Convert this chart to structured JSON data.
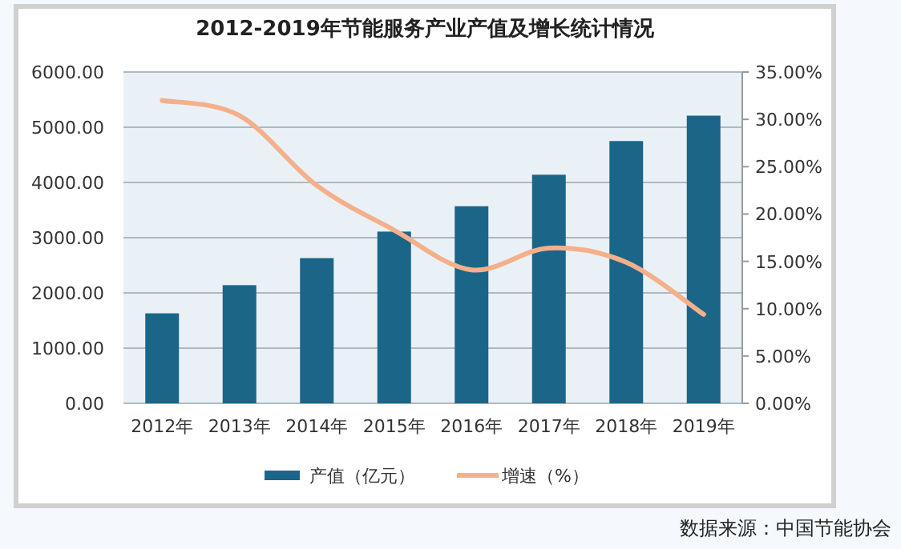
{
  "chart_data": {
    "type": "bar",
    "title": "2012-2019年节能服务产业产值及增长统计情况",
    "categories": [
      "2012年",
      "2013年",
      "2014年",
      "2015年",
      "2016年",
      "2017年",
      "2018年",
      "2019年"
    ],
    "series": [
      {
        "name": "产值（亿元）",
        "color": "#1b6589",
        "values": [
          1630,
          2140,
          2630,
          3110,
          3570,
          4140,
          4750,
          5210
        ]
      },
      {
        "name": "增速（%）",
        "type": "line",
        "axis": "y2",
        "color": "#f5b08a",
        "values": [
          32.0,
          30.4,
          23.0,
          18.3,
          14.1,
          16.4,
          14.9,
          9.4
        ]
      }
    ],
    "ylim": [
      0,
      6000
    ],
    "yticks": [
      {
        "value": 0,
        "label": "0.00"
      },
      {
        "value": 1000,
        "label": "1000.00"
      },
      {
        "value": 2000,
        "label": "2000.00"
      },
      {
        "value": 3000,
        "label": "3000.00"
      },
      {
        "value": 4000,
        "label": "4000.00"
      },
      {
        "value": 5000,
        "label": "5000.00"
      },
      {
        "value": 6000,
        "label": "6000.00"
      }
    ],
    "y2lim": [
      0,
      35
    ],
    "y2ticks": [
      {
        "value": 0,
        "label": "0.00%"
      },
      {
        "value": 5,
        "label": "5.00%"
      },
      {
        "value": 10,
        "label": "10.00%"
      },
      {
        "value": 15,
        "label": "15.00%"
      },
      {
        "value": 20,
        "label": "20.00%"
      },
      {
        "value": 25,
        "label": "25.00%"
      },
      {
        "value": 30,
        "label": "30.00%"
      },
      {
        "value": 35,
        "label": "35.00%"
      }
    ],
    "grid": "y",
    "legend": "bottom",
    "marker": "none",
    "annotations": [
      "数据来源：中国节能协会"
    ]
  }
}
